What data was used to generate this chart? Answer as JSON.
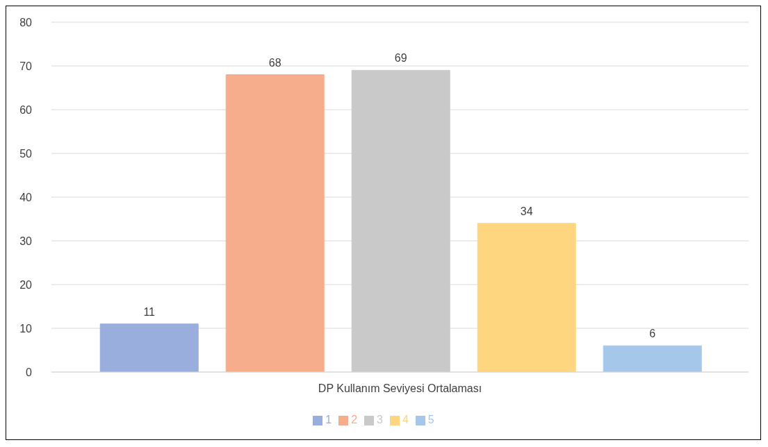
{
  "chart_data": {
    "type": "bar",
    "categories": [
      "DP Kullanım Seviyesi Ortalaması"
    ],
    "series": [
      {
        "name": "1",
        "color": "#9aaede",
        "values": [
          11
        ]
      },
      {
        "name": "2",
        "color": "#f5ad8c",
        "values": [
          68
        ]
      },
      {
        "name": "3",
        "color": "#c9c9c9",
        "values": [
          69
        ]
      },
      {
        "name": "4",
        "color": "#fed680",
        "values": [
          34
        ]
      },
      {
        "name": "5",
        "color": "#a5c8ea",
        "values": [
          6
        ]
      }
    ],
    "ylim": [
      0,
      80
    ],
    "yticks": [
      0,
      10,
      20,
      30,
      40,
      50,
      60,
      70,
      80
    ],
    "grid": "y",
    "legend": "bottom",
    "data_labels": true
  }
}
